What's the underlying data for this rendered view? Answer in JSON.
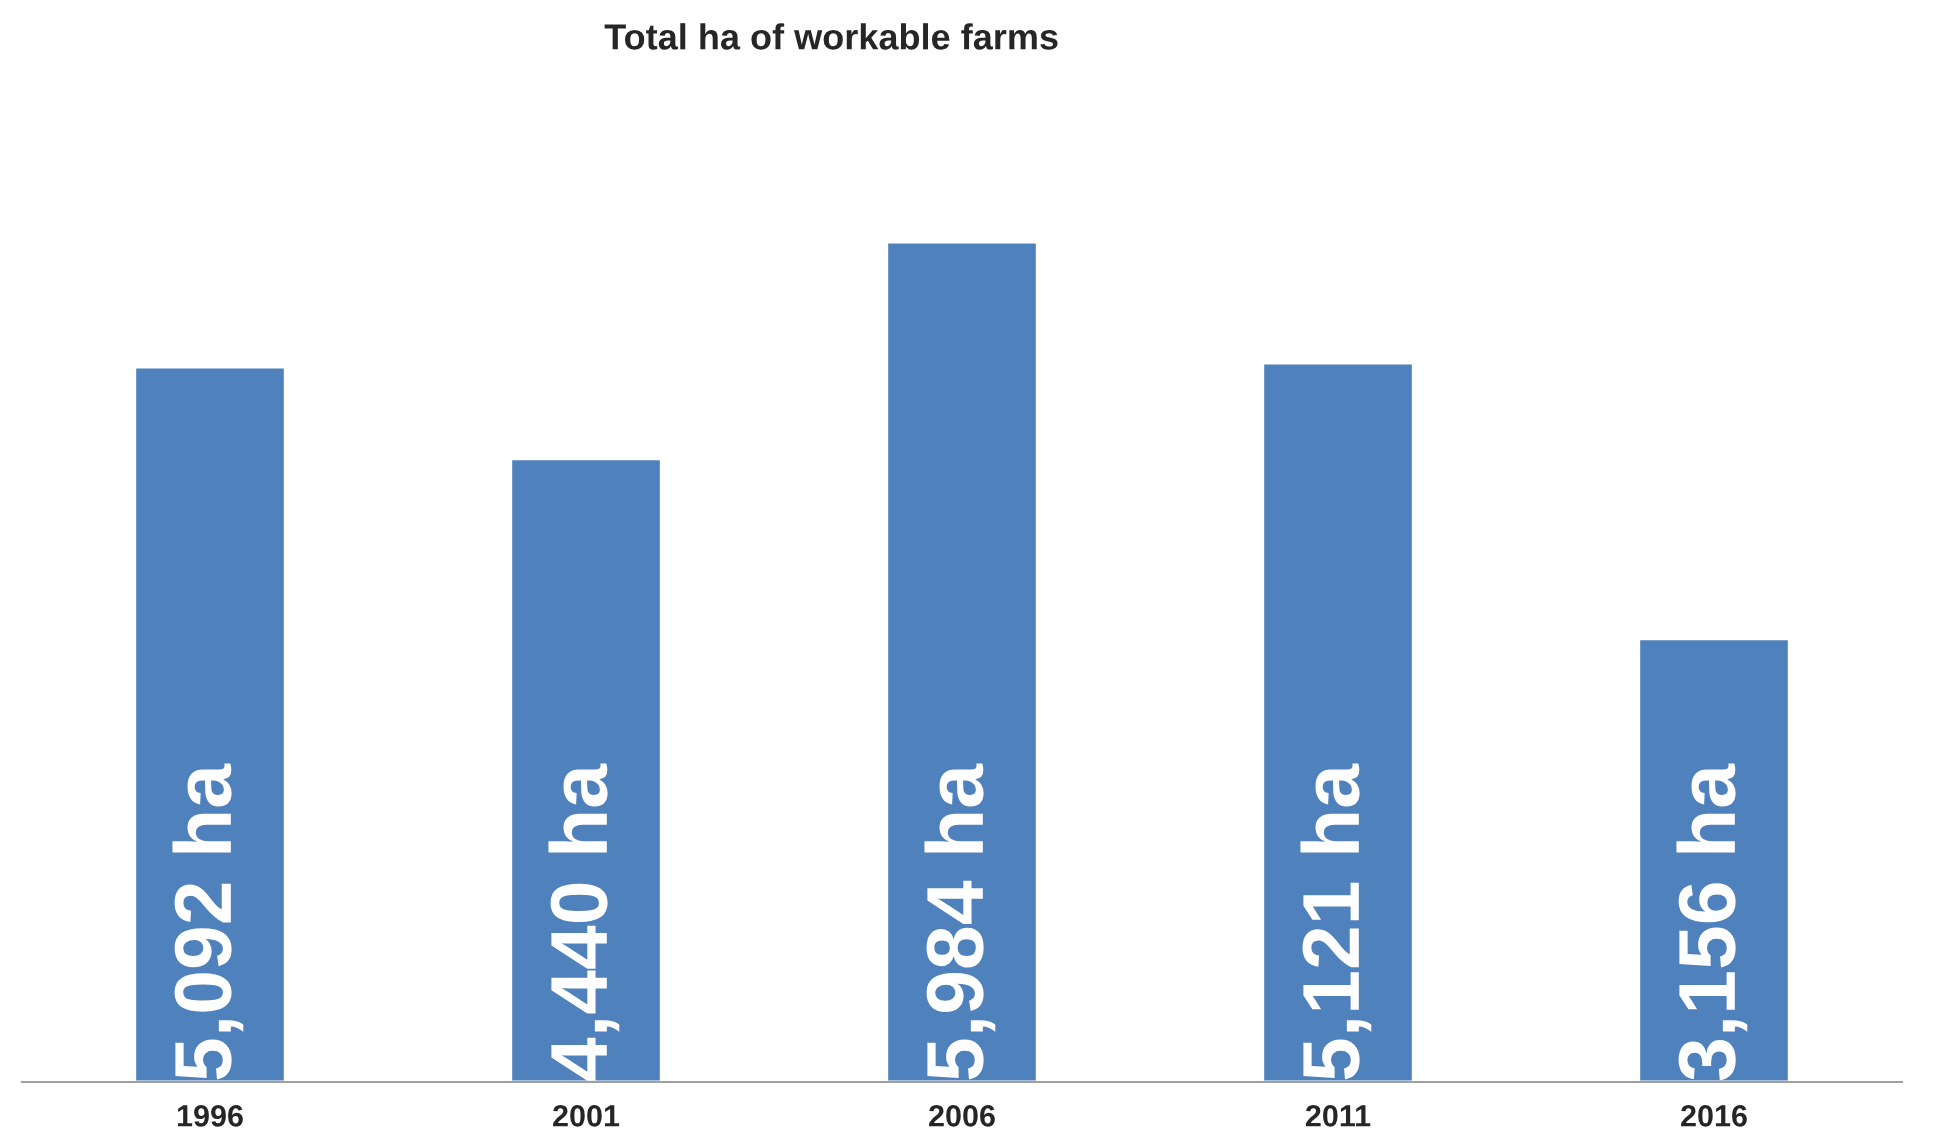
{
  "chart_data": {
    "type": "bar",
    "title": "Total ha of workable farms",
    "categories": [
      "1996",
      "2001",
      "2006",
      "2011",
      "2016"
    ],
    "values": [
      5092,
      4440,
      5984,
      5121,
      3156
    ],
    "value_labels": [
      "5,092 ha",
      "4,440 ha",
      "5,984 ha",
      "5,121 ha",
      "3,156 ha"
    ],
    "color": "#4f81bd",
    "grid": false,
    "legend": false
  }
}
